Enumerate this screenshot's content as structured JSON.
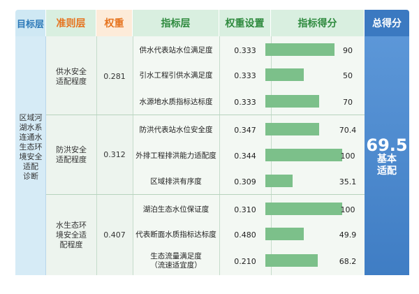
{
  "headers": {
    "target": "目标层",
    "criterion": "准则层",
    "weight": "权重",
    "indicator": "指标层",
    "weight_setting": "权重设置",
    "indicator_score": "指标得分",
    "total_score": "总得分"
  },
  "target": {
    "label": "区域河\n湖水系\n连通水\n生态环\n境安全\n适配\n诊断"
  },
  "total": {
    "score": "69.5",
    "grade": "基本\n适配"
  },
  "criteria": [
    {
      "label": "供水安全\n适配程度",
      "weight": "0.281",
      "indicators": [
        {
          "name": "供水代表站水位满足度",
          "weight": "0.333",
          "score": "90",
          "score_value": 90
        },
        {
          "name": "引水工程引供水满足度",
          "weight": "0.333",
          "score": "50",
          "score_value": 50
        },
        {
          "name": "水源地水质指标达标度",
          "weight": "0.333",
          "score": "70",
          "score_value": 70
        }
      ]
    },
    {
      "label": "防洪安全\n适配程度",
      "weight": "0.312",
      "indicators": [
        {
          "name": "防洪代表站水位安全度",
          "weight": "0.347",
          "score": "70.4",
          "score_value": 70.4
        },
        {
          "name": "外排工程排洪能力适配度",
          "weight": "0.344",
          "score": "100",
          "score_value": 100
        },
        {
          "name": "区域排洪有序度",
          "weight": "0.309",
          "score": "35.1",
          "score_value": 35.1
        }
      ]
    },
    {
      "label": "水生态环\n境安全适\n配程度",
      "weight": "0.407",
      "indicators": [
        {
          "name": "湖泊生态水位保证度",
          "weight": "0.310",
          "score": "100",
          "score_value": 100
        },
        {
          "name": "代表断面水质指标达标度",
          "weight": "0.480",
          "score": "49.9",
          "score_value": 49.9
        },
        {
          "name": "生态流量满足度\n（流速适宜度）",
          "weight": "0.210",
          "score": "68.2",
          "score_value": 68.2
        }
      ]
    }
  ]
}
